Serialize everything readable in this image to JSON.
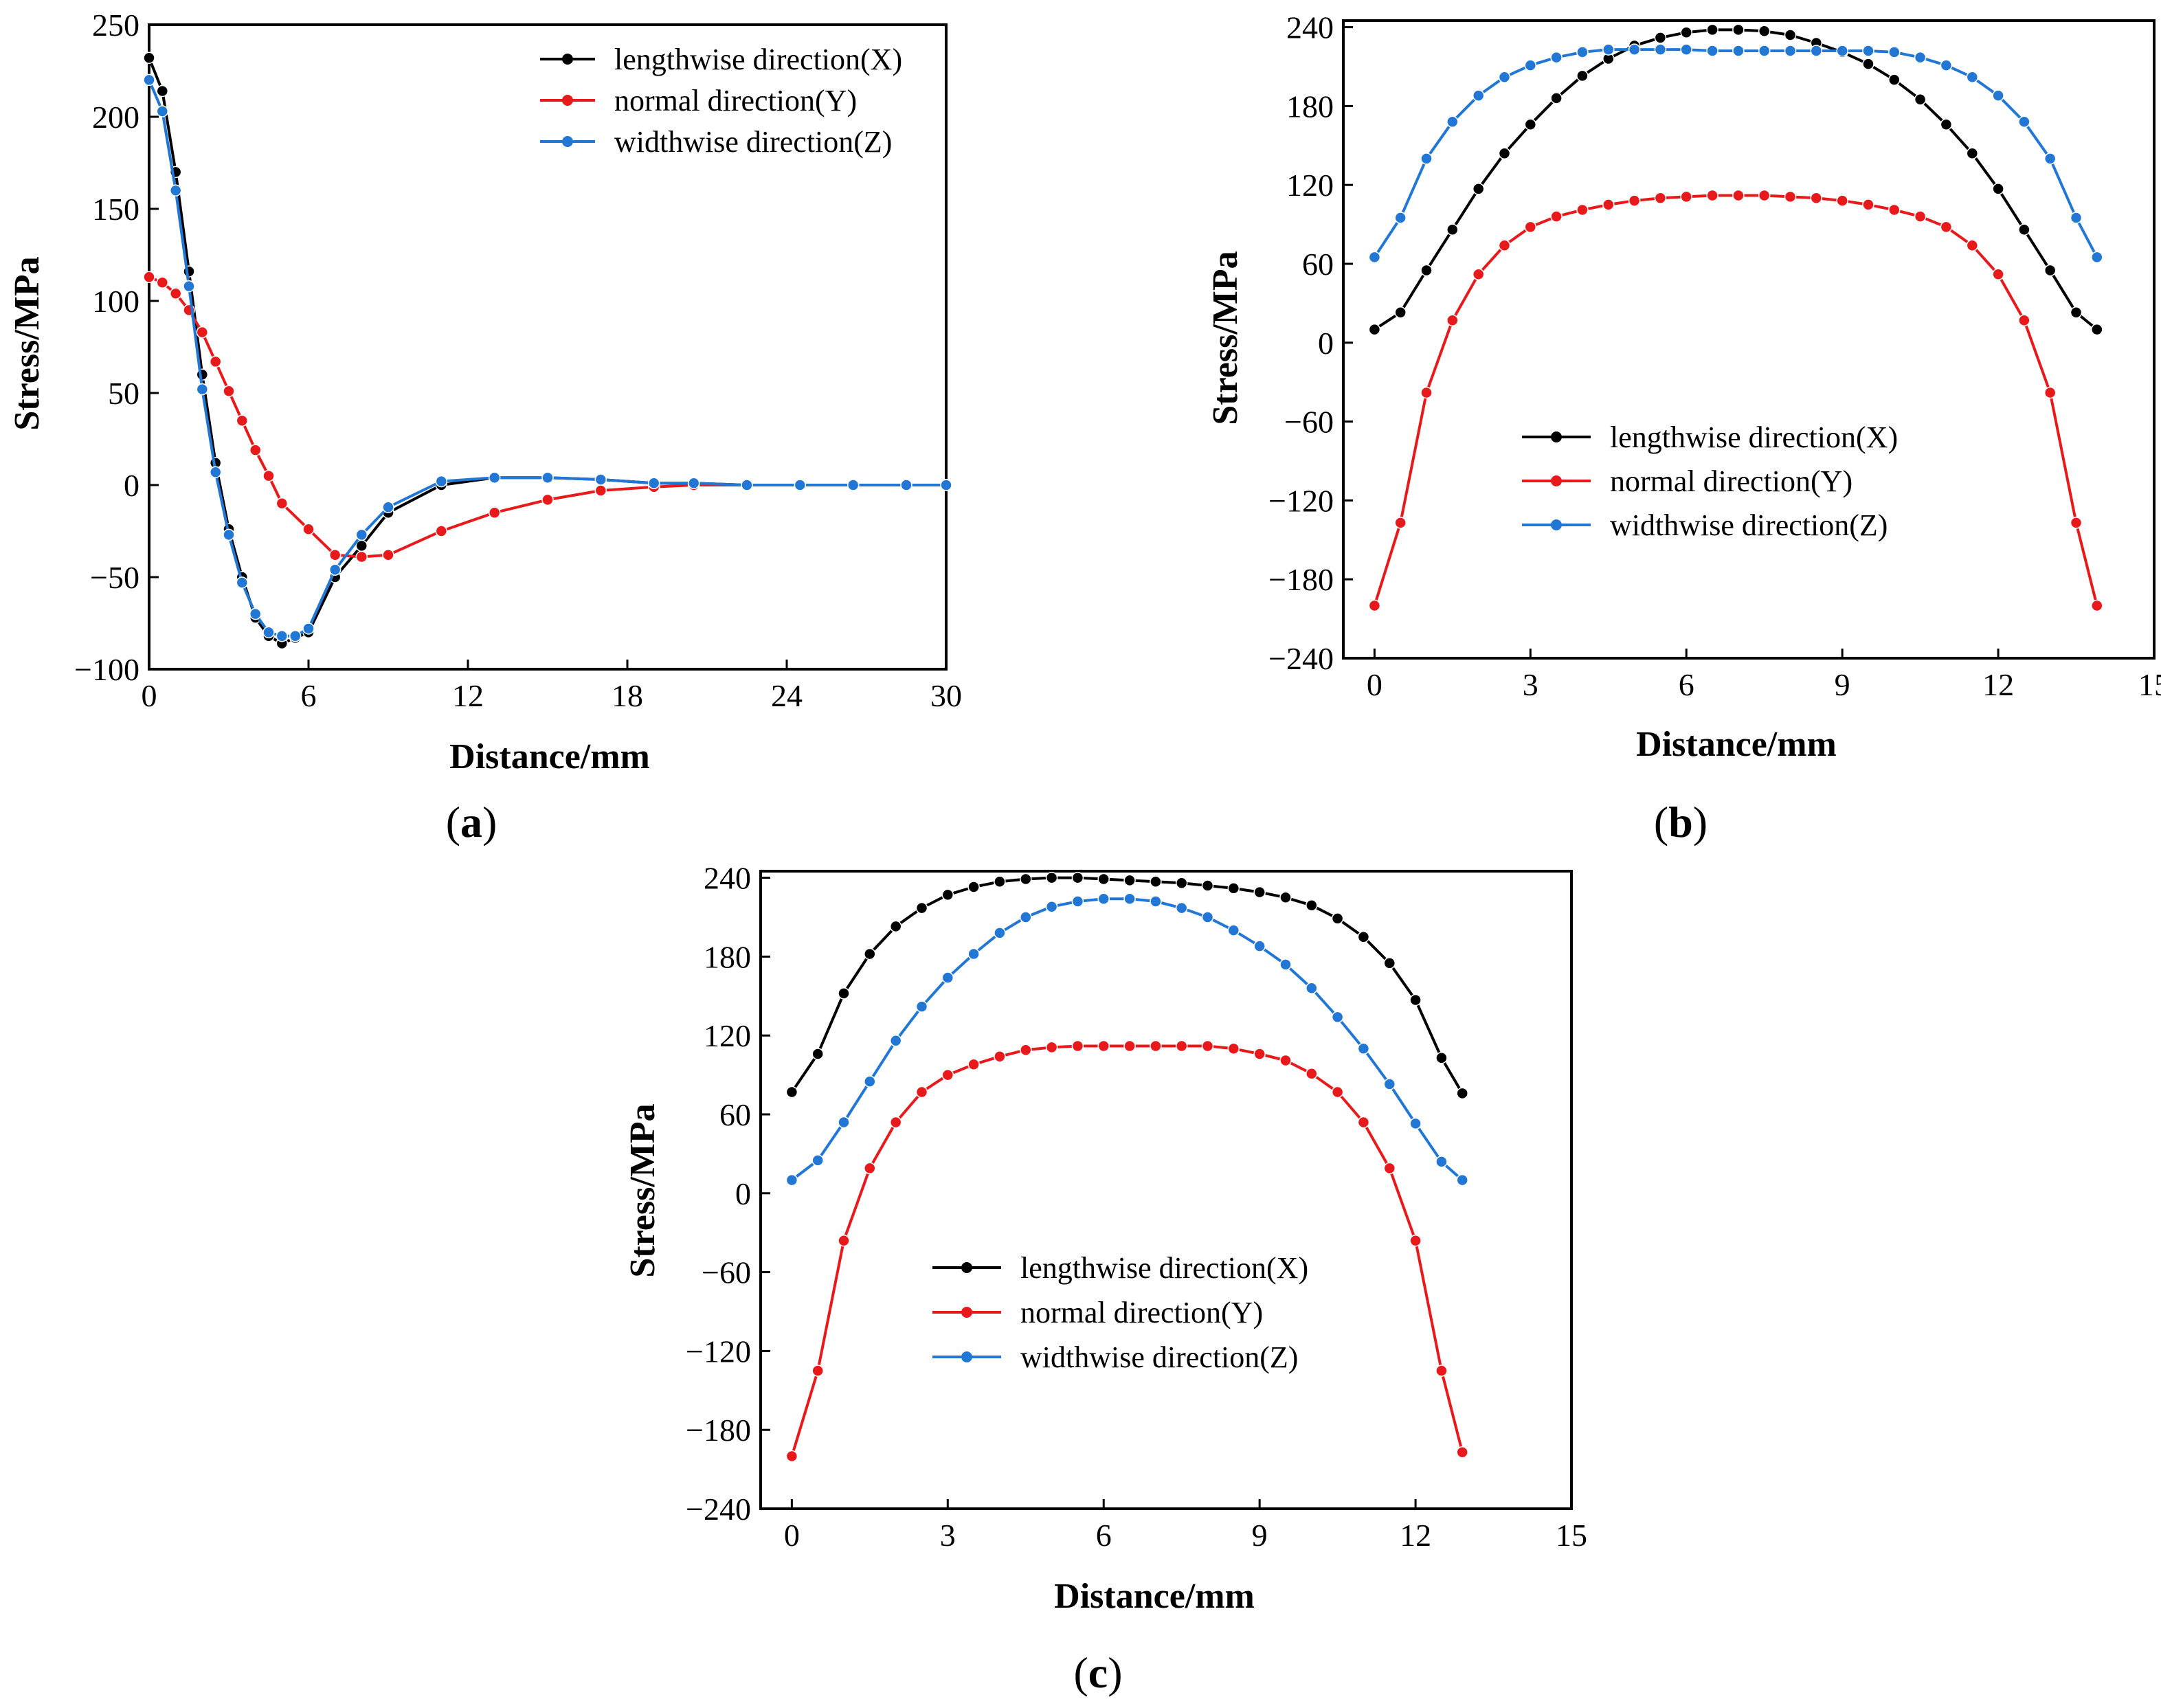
{
  "figure": {
    "colors": {
      "X": "#000000",
      "Y": "#e8191b",
      "Z": "#2377d4"
    }
  },
  "chart_data": [
    {
      "type": "line",
      "panel_label_parts": [
        "(",
        "a",
        ")"
      ],
      "xlabel": "Distance/mm",
      "ylabel": "Stress/MPa",
      "xlim": [
        0,
        30
      ],
      "ylim": [
        -100,
        250
      ],
      "xticks": [
        0,
        6,
        12,
        18,
        24,
        30
      ],
      "yticks": [
        -100,
        -50,
        0,
        50,
        100,
        150,
        200,
        250
      ],
      "tick_labels_x": [
        "0",
        "6",
        "12",
        "18",
        "24",
        "30"
      ],
      "tick_labels_y": [
        "−100",
        "−50",
        "0",
        "50",
        "100",
        "150",
        "200",
        "250"
      ],
      "legend_position": "top-right",
      "series": [
        {
          "name": "lengthwise direction(X)",
          "color": "#000000",
          "x": [
            0,
            0.5,
            1,
            1.5,
            2,
            2.5,
            3,
            3.5,
            4,
            4.5,
            5,
            5.5,
            6,
            7,
            8,
            9,
            11,
            13,
            15,
            17,
            19,
            20.5,
            22.5,
            24.5,
            26.5,
            28.5,
            30
          ],
          "y": [
            232,
            214,
            170,
            116,
            60,
            12,
            -24,
            -50,
            -72,
            -82,
            -86,
            -83,
            -80,
            -50,
            -33,
            -15,
            0,
            4,
            4,
            3,
            1,
            1,
            0,
            0,
            0,
            0,
            0
          ]
        },
        {
          "name": "normal direction(Y)",
          "color": "#e8191b",
          "x": [
            0,
            0.5,
            1,
            1.5,
            2,
            2.5,
            3,
            3.5,
            4,
            4.5,
            5,
            6,
            7,
            8,
            9,
            11,
            13,
            15,
            17,
            19,
            20.5,
            22.5,
            24.5,
            26.5,
            28.5,
            30
          ],
          "y": [
            113,
            110,
            104,
            95,
            83,
            67,
            51,
            35,
            19,
            5,
            -10,
            -24,
            -38,
            -39,
            -38,
            -25,
            -15,
            -8,
            -3,
            -1,
            0,
            0,
            0,
            0,
            0,
            0
          ]
        },
        {
          "name": "widthwise direction(Z)",
          "color": "#2377d4",
          "x": [
            0,
            0.5,
            1,
            1.5,
            2,
            2.5,
            3,
            3.5,
            4,
            4.5,
            5,
            5.5,
            6,
            7,
            8,
            9,
            11,
            13,
            15,
            17,
            19,
            20.5,
            22.5,
            24.5,
            26.5,
            28.5,
            30
          ],
          "y": [
            220,
            203,
            160,
            108,
            52,
            7,
            -27,
            -53,
            -70,
            -80,
            -82,
            -82,
            -78,
            -46,
            -27,
            -12,
            2,
            4,
            4,
            3,
            1,
            1,
            0,
            0,
            0,
            0,
            0
          ]
        }
      ]
    },
    {
      "type": "line",
      "panel_label_parts": [
        "(",
        "b",
        ")"
      ],
      "xlabel": "Distance/mm",
      "ylabel": "Stress/MPa",
      "xlim": [
        -0.6,
        15
      ],
      "ylim": [
        -240,
        245
      ],
      "xticks": [
        0,
        3,
        6,
        9,
        12,
        15
      ],
      "yticks": [
        -240,
        -180,
        -120,
        -60,
        0,
        60,
        120,
        180,
        240
      ],
      "tick_labels_x": [
        "0",
        "3",
        "6",
        "9",
        "12",
        "15"
      ],
      "tick_labels_y": [
        "−240",
        "−180",
        "−120",
        "−60",
        "0",
        "60",
        "120",
        "180",
        "240"
      ],
      "legend_position": "center-left",
      "series": [
        {
          "name": "lengthwise direction(X)",
          "color": "#000000",
          "x": [
            0,
            0.5,
            1,
            1.5,
            2,
            2.5,
            3,
            3.5,
            4,
            4.5,
            5,
            5.5,
            6,
            6.5,
            7,
            7.5,
            8,
            8.5,
            9,
            9.5,
            10,
            10.5,
            11,
            11.5,
            12,
            12.5,
            13,
            13.5,
            13.9
          ],
          "y": [
            10,
            23,
            55,
            86,
            117,
            144,
            166,
            186,
            203,
            216,
            226,
            232,
            236,
            238,
            238,
            237,
            234,
            228,
            221,
            212,
            200,
            185,
            166,
            144,
            117,
            86,
            55,
            23,
            10
          ]
        },
        {
          "name": "normal direction(Y)",
          "color": "#e8191b",
          "x": [
            0,
            0.5,
            1,
            1.5,
            2,
            2.5,
            3,
            3.5,
            4,
            4.5,
            5,
            5.5,
            6,
            6.5,
            7,
            7.5,
            8,
            8.5,
            9,
            9.5,
            10,
            10.5,
            11,
            11.5,
            12,
            12.5,
            13,
            13.5,
            13.9
          ],
          "y": [
            -200,
            -137,
            -38,
            17,
            52,
            74,
            88,
            96,
            101,
            105,
            108,
            110,
            111,
            112,
            112,
            112,
            111,
            110,
            108,
            105,
            101,
            96,
            88,
            74,
            52,
            17,
            -38,
            -137,
            -200
          ]
        },
        {
          "name": "widthwise direction(Z)",
          "color": "#2377d4",
          "x": [
            0,
            0.5,
            1,
            1.5,
            2,
            2.5,
            3,
            3.5,
            4,
            4.5,
            5,
            5.5,
            6,
            6.5,
            7,
            7.5,
            8,
            8.5,
            9,
            9.5,
            10,
            10.5,
            11,
            11.5,
            12,
            12.5,
            13,
            13.5,
            13.9
          ],
          "y": [
            65,
            95,
            140,
            168,
            188,
            202,
            211,
            217,
            221,
            223,
            223,
            223,
            223,
            222,
            222,
            222,
            222,
            222,
            222,
            222,
            221,
            217,
            211,
            202,
            188,
            168,
            140,
            95,
            65
          ]
        }
      ]
    },
    {
      "type": "line",
      "panel_label_parts": [
        "(",
        "c",
        ")"
      ],
      "xlabel": "Distance/mm",
      "ylabel": "Stress/MPa",
      "xlim": [
        -0.6,
        15
      ],
      "ylim": [
        -240,
        245
      ],
      "xticks": [
        0,
        3,
        6,
        9,
        12,
        15
      ],
      "yticks": [
        -240,
        -180,
        -120,
        -60,
        0,
        60,
        120,
        180,
        240
      ],
      "tick_labels_x": [
        "0",
        "3",
        "6",
        "9",
        "12",
        "15"
      ],
      "tick_labels_y": [
        "−240",
        "−180",
        "−120",
        "−60",
        "0",
        "60",
        "120",
        "180",
        "240"
      ],
      "legend_position": "center-left",
      "series": [
        {
          "name": "lengthwise direction(X)",
          "color": "#000000",
          "x": [
            0,
            0.5,
            1,
            1.5,
            2,
            2.5,
            3,
            3.5,
            4,
            4.5,
            5,
            5.5,
            6,
            6.5,
            7,
            7.5,
            8,
            8.5,
            9,
            9.5,
            10,
            10.5,
            11,
            11.5,
            12,
            12.5,
            12.9
          ],
          "y": [
            77,
            106,
            152,
            182,
            203,
            217,
            227,
            233,
            237,
            239,
            240,
            240,
            239,
            238,
            237,
            236,
            234,
            232,
            229,
            225,
            219,
            209,
            195,
            175,
            147,
            103,
            76
          ]
        },
        {
          "name": "normal direction(Y)",
          "color": "#e8191b",
          "x": [
            0,
            0.5,
            1,
            1.5,
            2,
            2.5,
            3,
            3.5,
            4,
            4.5,
            5,
            5.5,
            6,
            6.5,
            7,
            7.5,
            8,
            8.5,
            9,
            9.5,
            10,
            10.5,
            11,
            11.5,
            12,
            12.5,
            12.9
          ],
          "y": [
            -200,
            -135,
            -36,
            19,
            54,
            77,
            90,
            98,
            104,
            109,
            111,
            112,
            112,
            112,
            112,
            112,
            112,
            110,
            106,
            101,
            91,
            77,
            54,
            19,
            -36,
            -135,
            -197
          ]
        },
        {
          "name": "widthwise direction(Z)",
          "color": "#2377d4",
          "x": [
            0,
            0.5,
            1,
            1.5,
            2,
            2.5,
            3,
            3.5,
            4,
            4.5,
            5,
            5.5,
            6,
            6.5,
            7,
            7.5,
            8,
            8.5,
            9,
            9.5,
            10,
            10.5,
            11,
            11.5,
            12,
            12.5,
            12.9
          ],
          "y": [
            10,
            25,
            54,
            85,
            116,
            142,
            164,
            182,
            198,
            210,
            218,
            222,
            224,
            224,
            222,
            217,
            210,
            200,
            188,
            174,
            156,
            134,
            110,
            83,
            53,
            24,
            10
          ]
        }
      ]
    }
  ]
}
